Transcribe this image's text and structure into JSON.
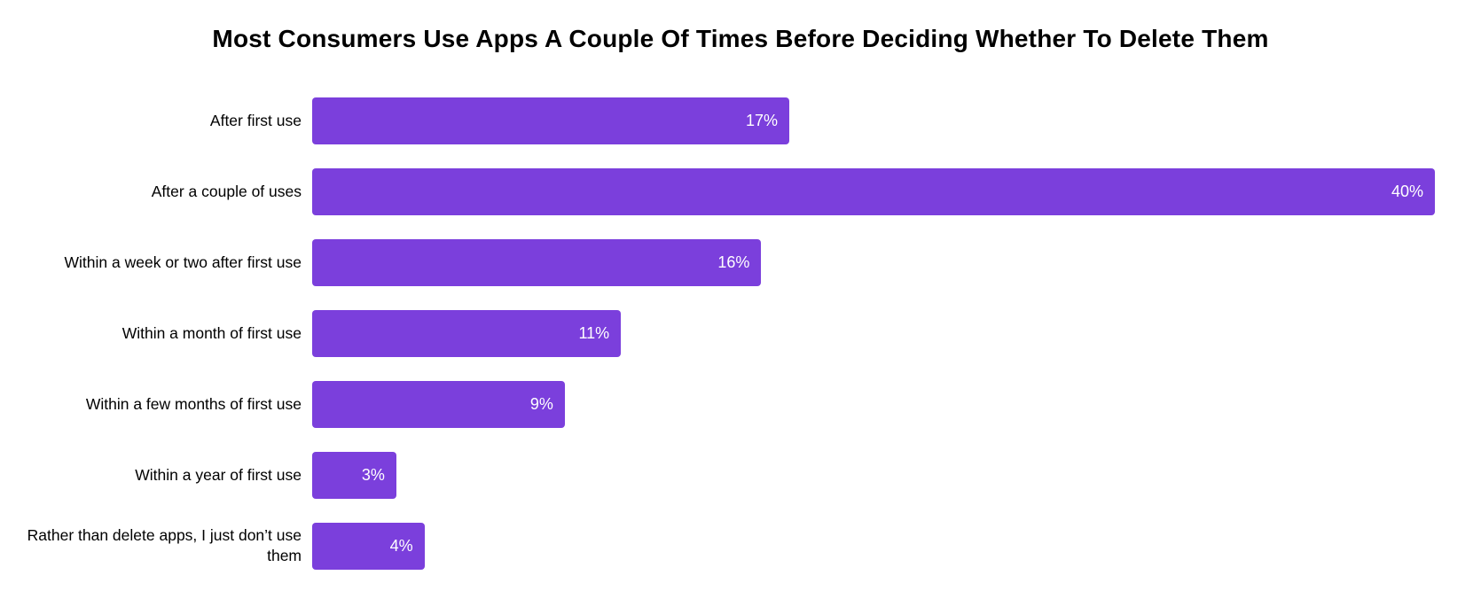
{
  "chart_data": {
    "type": "bar",
    "orientation": "horizontal",
    "title": "Most Consumers Use Apps A Couple Of Times Before Deciding Whether To Delete Them",
    "categories": [
      "After first use",
      "After a couple of uses",
      "Within a week or two after first use",
      "Within a month of first use",
      "Within a few months of first use",
      "Within a year of first use",
      "Rather than delete apps, I just don’t use them"
    ],
    "values": [
      17,
      40,
      16,
      11,
      9,
      3,
      4
    ],
    "value_labels": [
      "17%",
      "40%",
      "16%",
      "11%",
      "9%",
      "3%",
      "4%"
    ],
    "xlabel": "",
    "ylabel": "",
    "xlim": [
      0,
      40
    ],
    "grid": false,
    "legend": "none",
    "value_label_position": "inside-end",
    "bar_color": "#7B3FDC",
    "value_label_color": "#ffffff",
    "category_label_color": "#000000",
    "background_color": "#ffffff"
  }
}
